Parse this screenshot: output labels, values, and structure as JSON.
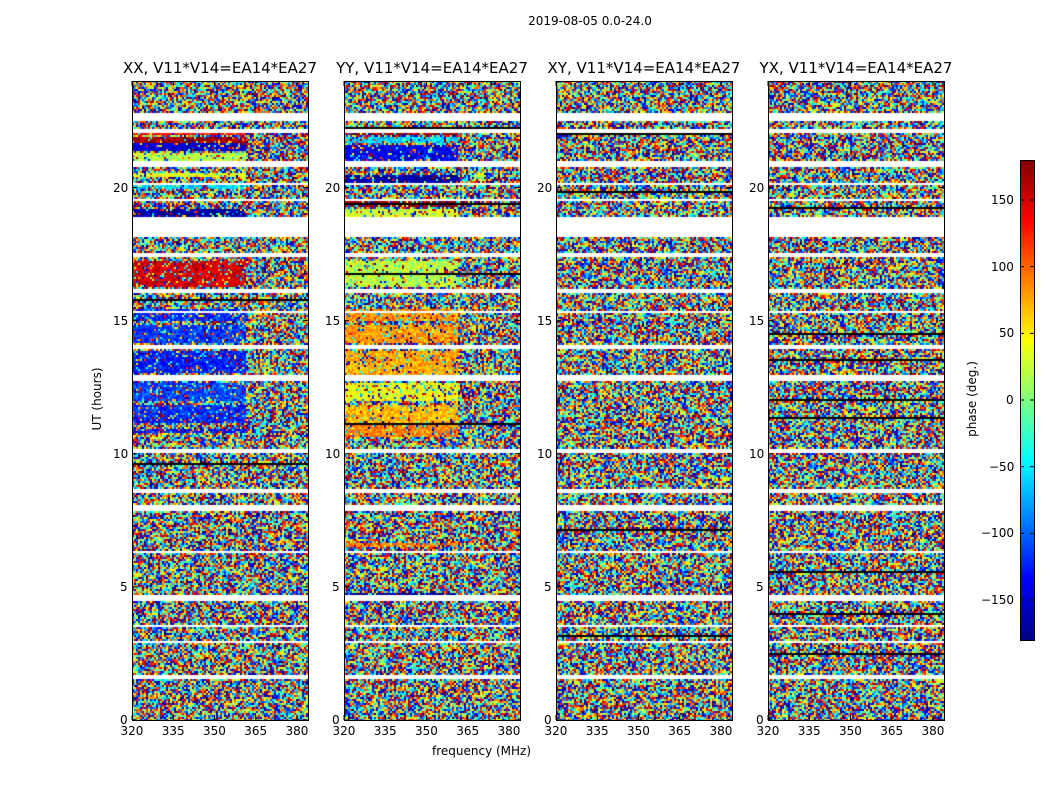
{
  "chart_data": {
    "type": "heatmap",
    "suptitle": "2019-08-05 0.0-24.0",
    "xlabel": "frequency (MHz)",
    "ylabel": "UT (hours)",
    "xlim": [
      320,
      384
    ],
    "ylim": [
      0,
      24
    ],
    "x_ticks": [
      "320",
      "335",
      "350",
      "365",
      "380"
    ],
    "x_tick_values": [
      320,
      335,
      350,
      365,
      380
    ],
    "y_ticks": [
      "0",
      "5",
      "10",
      "15",
      "20"
    ],
    "y_tick_values": [
      0,
      5,
      10,
      15,
      20
    ],
    "colorbar": {
      "label": "phase (deg.)",
      "range": [
        -180,
        180
      ],
      "ticks": [
        "150",
        "100",
        "50",
        "0",
        "−50",
        "−100",
        "−150"
      ],
      "tick_values": [
        150,
        100,
        50,
        0,
        -50,
        -100,
        -150
      ],
      "colormap": "jet"
    },
    "panels": [
      {
        "title": "XX, V11*V14=EA14*EA27",
        "flagged_ut_ranges": [
          [
            1.55,
            1.7
          ],
          [
            2.9,
            3.0
          ],
          [
            3.5,
            3.6
          ],
          [
            4.5,
            4.7
          ],
          [
            6.3,
            6.4
          ],
          [
            7.9,
            8.1
          ],
          [
            8.6,
            8.7
          ],
          [
            10.1,
            10.2
          ],
          [
            12.8,
            13.0
          ],
          [
            14.0,
            14.1
          ],
          [
            15.3,
            15.4
          ],
          [
            16.1,
            16.2
          ],
          [
            17.4,
            17.6
          ],
          [
            18.2,
            18.9
          ],
          [
            19.5,
            19.6
          ],
          [
            20.1,
            20.2
          ],
          [
            20.8,
            21.0
          ],
          [
            22.1,
            22.2
          ],
          [
            22.5,
            22.8
          ]
        ],
        "structured_bands": [
          [
            10.8,
            11.0,
            -130
          ],
          [
            11.2,
            11.9,
            -120
          ],
          [
            12.0,
            12.7,
            -110
          ],
          [
            13.1,
            13.9,
            -125
          ],
          [
            14.2,
            14.9,
            -115
          ],
          [
            15.0,
            15.5,
            -120
          ],
          [
            16.3,
            17.3,
            150
          ],
          [
            18.9,
            19.2,
            -170
          ],
          [
            20.0,
            20.2,
            -60
          ],
          [
            20.4,
            20.6,
            40
          ],
          [
            21.0,
            21.3,
            20
          ],
          [
            21.4,
            21.7,
            -150
          ],
          [
            21.7,
            21.9,
            170
          ],
          [
            22.0,
            22.1,
            130
          ]
        ]
      },
      {
        "title": "YY, V11*V14=EA14*EA27",
        "flagged_ut_ranges": [
          [
            1.55,
            1.7
          ],
          [
            2.9,
            3.0
          ],
          [
            3.5,
            3.6
          ],
          [
            4.5,
            4.7
          ],
          [
            6.3,
            6.4
          ],
          [
            7.9,
            8.1
          ],
          [
            8.6,
            8.7
          ],
          [
            10.1,
            10.2
          ],
          [
            12.8,
            13.0
          ],
          [
            14.0,
            14.1
          ],
          [
            15.3,
            15.4
          ],
          [
            16.1,
            16.2
          ],
          [
            17.4,
            17.6
          ],
          [
            18.2,
            18.9
          ],
          [
            19.5,
            19.6
          ],
          [
            20.1,
            20.2
          ],
          [
            20.8,
            21.0
          ],
          [
            22.1,
            22.2
          ],
          [
            22.5,
            22.8
          ]
        ],
        "structured_bands": [
          [
            10.7,
            11.1,
            90
          ],
          [
            11.2,
            11.9,
            70
          ],
          [
            12.0,
            12.7,
            40
          ],
          [
            13.0,
            13.9,
            75
          ],
          [
            14.2,
            14.9,
            80
          ],
          [
            15.0,
            15.5,
            85
          ],
          [
            16.3,
            17.3,
            20
          ],
          [
            6.5,
            6.7,
            90
          ],
          [
            4.6,
            4.8,
            -170
          ],
          [
            18.9,
            19.2,
            30
          ],
          [
            19.3,
            19.6,
            175
          ],
          [
            20.2,
            20.5,
            -165
          ],
          [
            20.9,
            21.6,
            -140
          ],
          [
            21.7,
            21.9,
            -60
          ],
          [
            22.0,
            22.3,
            170
          ]
        ]
      },
      {
        "title": "XY, V11*V14=EA14*EA27",
        "flagged_ut_ranges": [
          [
            1.55,
            1.7
          ],
          [
            2.9,
            3.0
          ],
          [
            3.5,
            3.6
          ],
          [
            4.5,
            4.7
          ],
          [
            6.3,
            6.4
          ],
          [
            7.9,
            8.1
          ],
          [
            8.6,
            8.7
          ],
          [
            10.1,
            10.2
          ],
          [
            12.8,
            13.0
          ],
          [
            14.0,
            14.1
          ],
          [
            15.3,
            15.4
          ],
          [
            16.1,
            16.2
          ],
          [
            17.4,
            17.6
          ],
          [
            18.2,
            18.9
          ],
          [
            19.5,
            19.6
          ],
          [
            20.1,
            20.2
          ],
          [
            20.8,
            21.0
          ],
          [
            22.1,
            22.2
          ],
          [
            22.5,
            22.8
          ]
        ],
        "structured_bands": []
      },
      {
        "title": "YX, V11*V14=EA14*EA27",
        "flagged_ut_ranges": [
          [
            1.55,
            1.7
          ],
          [
            2.9,
            3.0
          ],
          [
            3.5,
            3.6
          ],
          [
            4.5,
            4.7
          ],
          [
            6.3,
            6.4
          ],
          [
            7.9,
            8.1
          ],
          [
            8.6,
            8.7
          ],
          [
            10.1,
            10.2
          ],
          [
            12.8,
            13.0
          ],
          [
            14.0,
            14.1
          ],
          [
            15.3,
            15.4
          ],
          [
            16.1,
            16.2
          ],
          [
            17.4,
            17.6
          ],
          [
            18.2,
            18.9
          ],
          [
            19.5,
            19.6
          ],
          [
            20.1,
            20.2
          ],
          [
            20.8,
            21.0
          ],
          [
            22.1,
            22.2
          ],
          [
            22.5,
            22.8
          ]
        ],
        "structured_bands": []
      }
    ]
  }
}
